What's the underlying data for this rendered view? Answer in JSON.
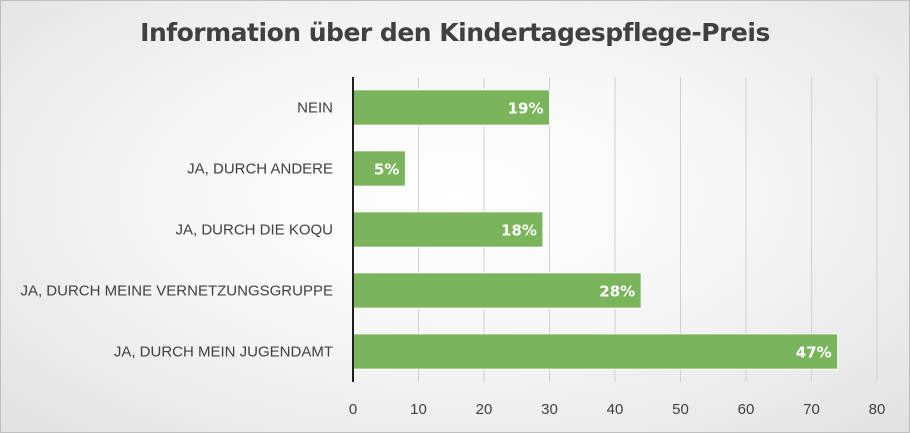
{
  "chart_data": {
    "type": "bar",
    "orientation": "horizontal",
    "title": "Information über den Kindertagespflege-Preis",
    "categories": [
      "NEIN",
      "JA, DURCH ANDERE",
      "JA, DURCH DIE KOQU",
      "JA, DURCH MEINE VERNETZUNGSGRUPPE",
      "JA, DURCH MEIN JUGENDAMT"
    ],
    "values": [
      30,
      8,
      29,
      44,
      74
    ],
    "data_labels": [
      "19%",
      "5%",
      "18%",
      "28%",
      "47%"
    ],
    "xlim": [
      0,
      80
    ],
    "xticks": [
      0,
      10,
      20,
      30,
      40,
      50,
      60,
      70,
      80
    ],
    "xlabel": "",
    "ylabel": "",
    "grid": "vertical",
    "legend": "none",
    "bar_color": "#7ab55c",
    "bar_border_color": "#ffffff"
  }
}
